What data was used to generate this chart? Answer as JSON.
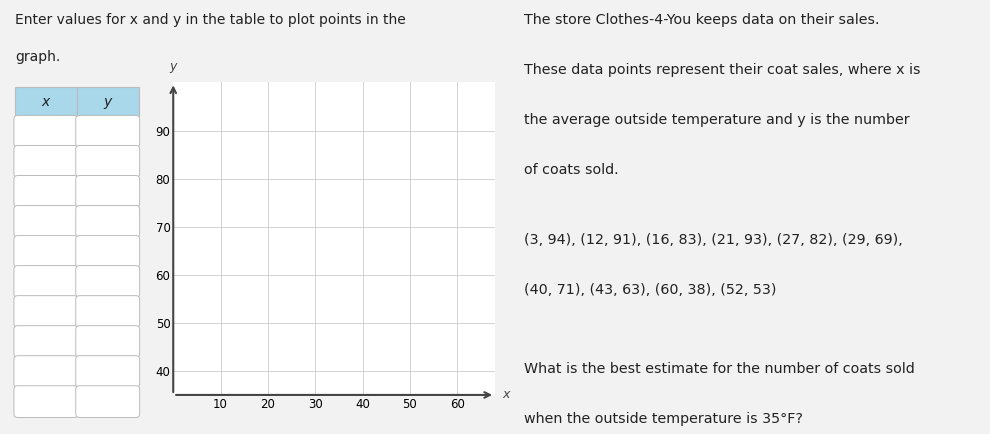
{
  "left_title_line1": "Enter values for x and y in the table to plot points in the",
  "left_title_line2": "graph.",
  "right_title_line1": "The store Clothes-4-You keeps data on their sales.",
  "right_title_line2": "These data points represent their coat sales, where x is",
  "right_title_line3": "the average outside temperature and y is the number",
  "right_title_line4": "of coats sold.",
  "data_points_line1": "(3, 94), (12, 91), (16, 83), (21, 93), (27, 82), (29, 69),",
  "data_points_line2": "(40, 71), (43, 63), (60, 38), (52, 53)",
  "question_line1": "What is the best estimate for the number of coats sold",
  "question_line2": "when the outside temperature is 35°F?",
  "table_x_label": "x",
  "table_y_label": "y",
  "num_rows": 10,
  "graph_xlabel": "x",
  "graph_ylabel": "y",
  "x_ticks": [
    10,
    20,
    30,
    40,
    50,
    60
  ],
  "y_ticks": [
    40,
    50,
    60,
    70,
    80,
    90
  ],
  "xlim": [
    0,
    68
  ],
  "ylim": [
    35,
    100
  ],
  "bg_color": "#f2f2f2",
  "table_header_color": "#a8d8ea",
  "grid_color": "#cccccc",
  "axis_color": "#444444",
  "cell_bg": "#ffffff",
  "cell_border": "#bbbbbb",
  "text_color": "#222222",
  "font_size": 10.0,
  "input_box_color": "#c8c8c8",
  "input_box_border": "#bbbbbb"
}
